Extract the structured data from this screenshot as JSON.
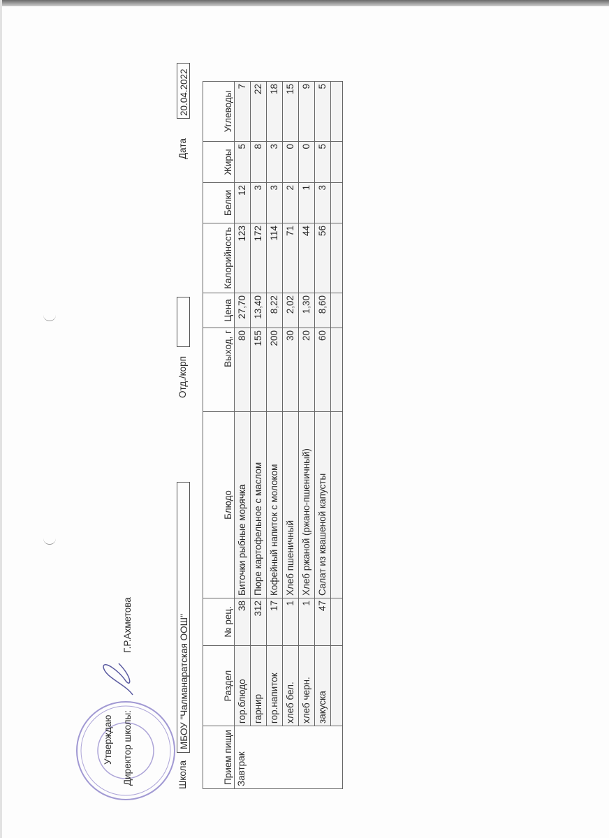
{
  "approval": {
    "approve_label": "Утверждаю",
    "director_label": "Директор школы:",
    "director_name": "Г.Р.Ахметова",
    "stamp_text": "МБОУ Чалманаратская ООШ ИНН 1604005710 ОГРН 1031635202246"
  },
  "header": {
    "school_label": "Школа",
    "school_value": "МБОУ \"Чалманаратская ООШ\"",
    "department_label": "Отд./корп",
    "department_value": "",
    "date_label": "Дата",
    "date_value": "20.04.2022"
  },
  "table": {
    "columns": [
      "Прием пищи",
      "Раздел",
      "№ рец.",
      "Блюдо",
      "Выход, г",
      "Цена",
      "Калорийность",
      "Белки",
      "Жиры",
      "Углеводы"
    ],
    "meal": "Завтрак",
    "rows": [
      {
        "section": "гор.блюдо",
        "recipe": "38",
        "dish": "Биточки рыбные морячка",
        "yield": "80",
        "price": "27,70",
        "calories": "123",
        "protein": "12",
        "fat": "5",
        "carbs": "7"
      },
      {
        "section": "гарнир",
        "recipe": "312",
        "dish": "Пюре картофельное с маслом",
        "yield": "155",
        "price": "13,40",
        "calories": "172",
        "protein": "3",
        "fat": "8",
        "carbs": "22"
      },
      {
        "section": "гор.напиток",
        "recipe": "17",
        "dish": "Кофейный напиток с молоком",
        "yield": "200",
        "price": "8,22",
        "calories": "114",
        "protein": "3",
        "fat": "3",
        "carbs": "18"
      },
      {
        "section": "хлеб бел.",
        "recipe": "1",
        "dish": "Хлеб пшеничный",
        "yield": "30",
        "price": "2,02",
        "calories": "71",
        "protein": "2",
        "fat": "0",
        "carbs": "15"
      },
      {
        "section": "хлеб черн.",
        "recipe": "1",
        "dish": "Хлеб ржаной (ржано-пшеничный)",
        "yield": "20",
        "price": "1,30",
        "calories": "44",
        "protein": "1",
        "fat": "0",
        "carbs": "9"
      },
      {
        "section": "закуска",
        "recipe": "47",
        "dish": "Салат из квашеной капусты",
        "yield": "60",
        "price": "8,60",
        "calories": "56",
        "protein": "3",
        "fat": "5",
        "carbs": "5"
      }
    ]
  },
  "colors": {
    "stamp": "#8a7fc8",
    "signature": "#5a5aa0"
  }
}
